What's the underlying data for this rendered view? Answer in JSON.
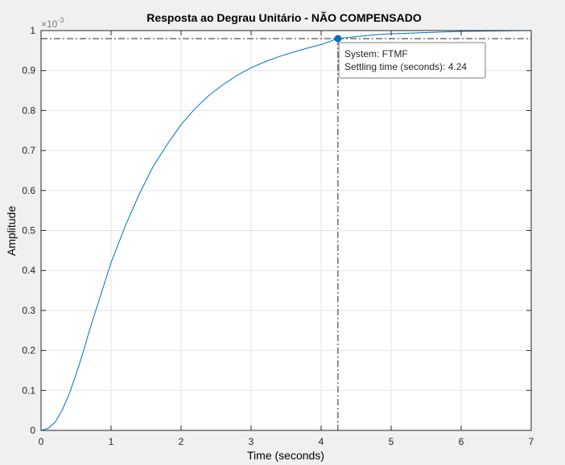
{
  "chart_data": {
    "type": "line",
    "title": "Resposta ao Degrau Unitário - NÃO COMPENSADO",
    "xlabel": "Time (seconds)",
    "ylabel": "Amplitude",
    "y_exponent_base": "×10",
    "y_exponent_power": "-3",
    "xlim": [
      0,
      7
    ],
    "ylim": [
      0,
      1
    ],
    "xticks": [
      0,
      1,
      2,
      3,
      4,
      5,
      6,
      7
    ],
    "xtick_labels": [
      "0",
      "1",
      "2",
      "3",
      "4",
      "5",
      "6",
      "7"
    ],
    "yticks": [
      0,
      0.1,
      0.2,
      0.3,
      0.4,
      0.5,
      0.6,
      0.7,
      0.8,
      0.9,
      1
    ],
    "ytick_labels": [
      "0",
      "0.1",
      "0.2",
      "0.3",
      "0.4",
      "0.5",
      "0.6",
      "0.7",
      "0.8",
      "0.9",
      "1"
    ],
    "grid": true,
    "series": [
      {
        "color": "#0072bd",
        "x": [
          0,
          0.1,
          0.2,
          0.3,
          0.4,
          0.5,
          0.6,
          0.7,
          0.8,
          0.9,
          1.0,
          1.2,
          1.4,
          1.6,
          1.8,
          2.0,
          2.2,
          2.4,
          2.6,
          2.8,
          3.0,
          3.2,
          3.4,
          3.6,
          3.8,
          4.0,
          4.24,
          4.5,
          4.8,
          5.0,
          5.5,
          6.0,
          6.5,
          7.0
        ],
        "y": [
          0,
          0.005,
          0.02,
          0.05,
          0.09,
          0.14,
          0.195,
          0.255,
          0.31,
          0.365,
          0.42,
          0.51,
          0.59,
          0.66,
          0.715,
          0.765,
          0.805,
          0.838,
          0.865,
          0.888,
          0.907,
          0.922,
          0.935,
          0.946,
          0.956,
          0.965,
          0.98,
          0.985,
          0.99,
          0.992,
          0.995,
          0.998,
          0.999,
          1.0
        ]
      }
    ],
    "settling_marker": {
      "x": 4.24,
      "y": 0.98,
      "color": "#0072bd",
      "datatip_line1": "System: FTMF",
      "datatip_line2": "Settling time (seconds): 4.24"
    },
    "reference_levels": [
      0.98,
      1.0
    ]
  }
}
